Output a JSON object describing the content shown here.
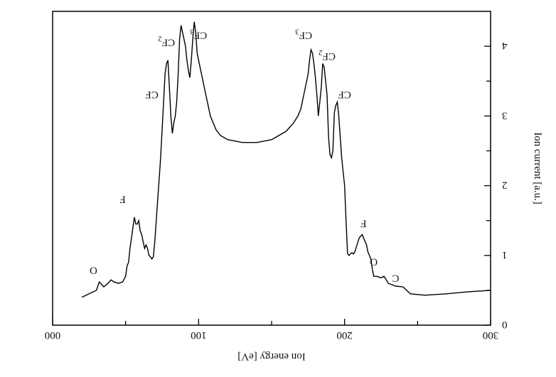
{
  "chart_data": {
    "type": "line",
    "orientation": "image displayed rotated 180 degrees (upside down)",
    "xlabel": "Ion energy [eV]",
    "ylabel": "Ion current [a.u.]",
    "xlim": [
      300,
      0
    ],
    "ylim": [
      0,
      4.5
    ],
    "x_ticks": [
      "300",
      "200",
      "100",
      "000"
    ],
    "y_ticks": [
      "0",
      "1",
      "2",
      "3",
      "4"
    ],
    "grid": false,
    "series": [
      {
        "x": [
          300,
          285,
          270,
          255,
          245,
          240,
          235,
          230,
          227,
          225,
          222,
          220,
          219,
          218,
          217,
          216,
          215,
          212,
          210,
          207,
          206,
          205,
          204,
          203,
          202,
          201,
          200,
          199,
          198,
          197,
          196,
          195,
          194,
          193,
          192,
          191,
          190,
          189,
          188,
          187,
          186,
          185,
          184,
          183,
          182,
          181,
          180,
          179,
          178,
          177,
          176,
          175,
          174,
          173,
          172,
          171,
          170,
          168,
          165,
          160,
          150,
          140,
          130,
          120,
          115,
          112,
          110,
          108,
          106,
          104,
          102,
          100,
          99,
          98,
          97,
          96,
          95,
          94,
          93,
          92,
          91,
          90,
          89,
          88,
          87,
          86,
          85,
          84,
          83,
          82,
          81,
          80,
          79,
          78,
          77,
          76,
          75,
          74,
          73,
          72,
          71,
          70,
          69,
          68,
          67,
          66,
          65,
          64,
          63,
          62,
          61,
          60,
          59,
          58,
          57,
          56,
          55,
          54,
          53,
          52,
          51,
          50,
          48,
          45,
          42,
          40,
          38,
          35,
          32,
          30,
          28,
          25,
          22,
          20
        ],
        "y": [
          0.5,
          0.48,
          0.45,
          0.43,
          0.45,
          0.55,
          0.56,
          0.6,
          0.7,
          0.68,
          0.7,
          0.7,
          0.8,
          0.95,
          1.0,
          1.05,
          1.15,
          1.3,
          1.25,
          1.05,
          1.02,
          1.04,
          1.02,
          1.0,
          1.03,
          1.5,
          2.0,
          2.2,
          2.4,
          2.7,
          3.0,
          3.2,
          3.15,
          3.05,
          2.5,
          2.4,
          2.45,
          2.7,
          3.3,
          3.5,
          3.7,
          3.75,
          3.4,
          3.2,
          3.0,
          3.3,
          3.55,
          3.75,
          3.9,
          3.95,
          3.8,
          3.6,
          3.5,
          3.4,
          3.3,
          3.2,
          3.1,
          3.0,
          2.9,
          2.78,
          2.66,
          2.62,
          2.62,
          2.66,
          2.72,
          2.8,
          2.9,
          3.0,
          3.2,
          3.4,
          3.6,
          3.8,
          3.9,
          4.2,
          4.35,
          4.1,
          3.8,
          3.55,
          3.65,
          3.8,
          4.0,
          4.1,
          4.2,
          4.3,
          4.1,
          3.6,
          3.2,
          3.0,
          2.9,
          2.75,
          3.0,
          3.4,
          3.8,
          3.75,
          3.6,
          3.2,
          2.8,
          2.4,
          2.1,
          1.8,
          1.5,
          1.2,
          0.98,
          0.95,
          0.98,
          1.0,
          1.1,
          1.15,
          1.1,
          1.2,
          1.3,
          1.35,
          1.5,
          1.45,
          1.45,
          1.55,
          1.4,
          1.25,
          1.1,
          0.9,
          0.85,
          0.7,
          0.62,
          0.6,
          0.62,
          0.65,
          0.6,
          0.55,
          0.62,
          0.5,
          0.48,
          0.45,
          0.42,
          0.4
        ]
      }
    ],
    "annotations": [
      {
        "text": "C",
        "x": 235,
        "y": 0.72
      },
      {
        "text": "O",
        "x": 220,
        "y": 0.95
      },
      {
        "text": "F",
        "x": 213,
        "y": 1.5
      },
      {
        "text": "CF",
        "x": 200,
        "y": 3.35
      },
      {
        "text": "CF2",
        "x": 188,
        "y": 3.9
      },
      {
        "text": "CF3",
        "x": 172,
        "y": 4.2
      },
      {
        "text": "CF3",
        "x": 100,
        "y": 4.2
      },
      {
        "text": "CF2",
        "x": 78,
        "y": 4.1
      },
      {
        "text": "CF",
        "x": 68,
        "y": 3.35
      },
      {
        "text": "F",
        "x": 48,
        "y": 1.85
      },
      {
        "text": "O",
        "x": 28,
        "y": 0.83
      }
    ]
  }
}
